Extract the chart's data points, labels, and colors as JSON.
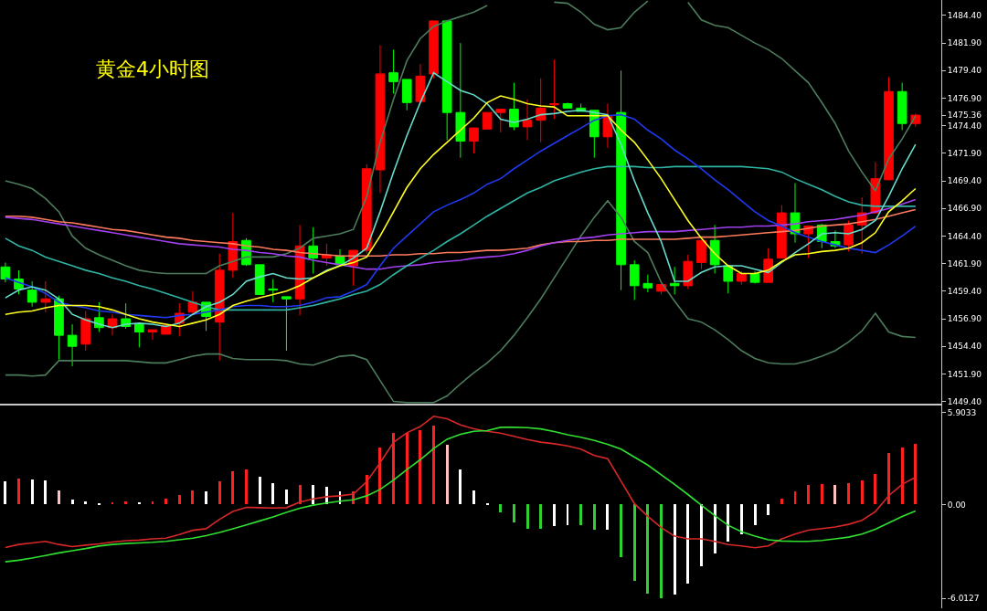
{
  "chart_data": [
    {
      "type": "candlestick",
      "title": "黄金4小时图",
      "categories": [
        null,
        null,
        null,
        null,
        null,
        null,
        null,
        null,
        null,
        null,
        null,
        null,
        null,
        null,
        null,
        null,
        null,
        null,
        null,
        null,
        null,
        null,
        null,
        null,
        null,
        null,
        null,
        null,
        null,
        null,
        null,
        null,
        null,
        null,
        null,
        null,
        null,
        null,
        null,
        null,
        null,
        null,
        null,
        null,
        null,
        null,
        null,
        null,
        null,
        null,
        null,
        null,
        null,
        null,
        null,
        null,
        null,
        null,
        null,
        null,
        null,
        null,
        null,
        null,
        null,
        null,
        null,
        null,
        null
      ],
      "ohlc": [
        [
          1461.6,
          1462.0,
          1460.2,
          1460.5
        ],
        [
          1460.5,
          1461.3,
          1459.1,
          1459.6
        ],
        [
          1459.5,
          1460.3,
          1458.0,
          1458.4
        ],
        [
          1458.4,
          1460.3,
          1457.5,
          1458.7
        ],
        [
          1458.7,
          1459.0,
          1453.2,
          1455.4
        ],
        [
          1455.4,
          1456.4,
          1452.6,
          1454.4
        ],
        [
          1454.6,
          1457.6,
          1454.0,
          1456.9
        ],
        [
          1457.0,
          1458.4,
          1455.7,
          1456.1
        ],
        [
          1456.1,
          1457.3,
          1455.4,
          1456.9
        ],
        [
          1456.9,
          1458.3,
          1456.0,
          1456.2
        ],
        [
          1456.4,
          1456.4,
          1454.3,
          1455.7
        ],
        [
          1455.7,
          1455.9,
          1455.0,
          1455.9
        ],
        [
          1455.5,
          1456.3,
          1455.5,
          1456.3
        ],
        [
          1456.5,
          1458.3,
          1455.3,
          1457.4
        ],
        [
          1457.5,
          1459.4,
          1457.3,
          1458.4
        ],
        [
          1458.4,
          1458.4,
          1455.8,
          1457.1
        ],
        [
          1456.6,
          1462.8,
          1453.1,
          1461.3
        ],
        [
          1461.3,
          1466.5,
          1460.6,
          1463.9
        ],
        [
          1464.0,
          1464.2,
          1461.7,
          1461.8
        ],
        [
          1461.8,
          1461.8,
          1459.1,
          1459.1
        ],
        [
          1459.6,
          1460.5,
          1458.4,
          1459.5
        ],
        [
          1458.9,
          1458.9,
          1454.0,
          1458.7
        ],
        [
          1458.7,
          1465.4,
          1457.2,
          1463.5
        ],
        [
          1463.5,
          1465.2,
          1461.0,
          1462.4
        ],
        [
          1462.4,
          1463.7,
          1461.7,
          1462.7
        ],
        [
          1462.6,
          1463.2,
          1461.7,
          1461.8
        ],
        [
          1461.7,
          1463.1,
          1459.9,
          1463.1
        ],
        [
          1463.1,
          1470.9,
          1462.8,
          1470.5
        ],
        [
          1470.4,
          1481.7,
          1468.3,
          1479.1
        ],
        [
          1479.2,
          1481.3,
          1477.3,
          1478.4
        ],
        [
          1478.6,
          1478.6,
          1475.8,
          1476.5
        ],
        [
          1476.6,
          1480.0,
          1476.5,
          1478.9
        ],
        [
          1479.1,
          1483.9,
          1478.7,
          1483.9
        ],
        [
          1483.9,
          1484.0,
          1473.1,
          1475.6
        ],
        [
          1475.6,
          1481.9,
          1471.5,
          1473.0
        ],
        [
          1473.0,
          1474.2,
          1471.9,
          1474.2
        ],
        [
          1474.1,
          1475.6,
          1474.1,
          1475.6
        ],
        [
          1475.6,
          1475.9,
          1473.8,
          1475.9
        ],
        [
          1475.9,
          1478.3,
          1474.0,
          1474.3
        ],
        [
          1474.3,
          1476.8,
          1473.1,
          1474.9
        ],
        [
          1474.9,
          1478.7,
          1472.9,
          1476.0
        ],
        [
          1476.3,
          1480.4,
          1475.0,
          1476.4
        ],
        [
          1476.4,
          1476.5,
          1476.0,
          1476.0
        ],
        [
          1476.0,
          1476.4,
          1475.7,
          1475.7
        ],
        [
          1475.8,
          1475.8,
          1471.5,
          1473.4
        ],
        [
          1473.4,
          1476.4,
          1472.4,
          1475.3
        ],
        [
          1475.6,
          1479.4,
          1459.5,
          1461.8
        ],
        [
          1461.8,
          1462.2,
          1458.6,
          1459.9
        ],
        [
          1460.1,
          1460.9,
          1459.3,
          1459.7
        ],
        [
          1459.4,
          1460.0,
          1459.1,
          1460.0
        ],
        [
          1460.1,
          1461.6,
          1459.1,
          1459.9
        ],
        [
          1459.9,
          1462.7,
          1459.6,
          1462.1
        ],
        [
          1462.0,
          1464.0,
          1461.4,
          1464.0
        ],
        [
          1464.0,
          1465.4,
          1461.0,
          1461.8
        ],
        [
          1461.7,
          1461.7,
          1459.2,
          1460.3
        ],
        [
          1460.3,
          1461.2,
          1460.0,
          1461.0
        ],
        [
          1461.0,
          1461.2,
          1460.1,
          1460.2
        ],
        [
          1460.2,
          1463.3,
          1460.2,
          1462.3
        ],
        [
          1462.4,
          1467.2,
          1462.4,
          1466.5
        ],
        [
          1466.5,
          1469.2,
          1463.8,
          1464.6
        ],
        [
          1464.6,
          1465.3,
          1462.4,
          1465.3
        ],
        [
          1465.4,
          1465.5,
          1463.3,
          1463.9
        ],
        [
          1463.9,
          1464.9,
          1463.3,
          1463.5
        ],
        [
          1463.6,
          1465.8,
          1463.0,
          1465.4
        ],
        [
          1465.4,
          1467.9,
          1462.8,
          1466.5
        ],
        [
          1466.5,
          1471.1,
          1466.4,
          1469.6
        ],
        [
          1469.5,
          1478.8,
          1469.5,
          1477.5
        ],
        [
          1477.5,
          1478.3,
          1474.0,
          1474.6
        ],
        [
          1474.6,
          1475.5,
          1474.3,
          1475.36
        ]
      ],
      "colors": [
        "#00ff00",
        "#00ff00",
        "#00ff00",
        "#ff0000",
        "#00ff00",
        "#00ff00",
        "#ff0000",
        "#00ff00",
        "#ff0000",
        "#00ff00",
        "#00ff00",
        "#ff0000",
        "#ff0000",
        "#ff0000",
        "#ff0000",
        "#00ff00",
        "#ff0000",
        "#ff0000",
        "#00ff00",
        "#00ff00",
        "#00ff00",
        "#00ff00",
        "#ff0000",
        "#00ff00",
        "#ff0000",
        "#00ff00",
        "#ff0000",
        "#ff0000",
        "#ff0000",
        "#00ff00",
        "#00ff00",
        "#ff0000",
        "#ff0000",
        "#00ff00",
        "#00ff00",
        "#ff0000",
        "#ff0000",
        "#ff0000",
        "#00ff00",
        "#ff0000",
        "#ff0000",
        "#ff0000",
        "#00ff00",
        "#00ff00",
        "#00ff00",
        "#ff0000",
        "#00ff00",
        "#00ff00",
        "#00ff00",
        "#ff0000",
        "#00ff00",
        "#ff0000",
        "#ff0000",
        "#00ff00",
        "#00ff00",
        "#ff0000",
        "#00ff00",
        "#ff0000",
        "#ff0000",
        "#00ff00",
        "#ff0000",
        "#00ff00",
        "#00ff00",
        "#ff0000",
        "#ff0000",
        "#ff0000",
        "#ff0000",
        "#00ff00",
        "#ff0000"
      ],
      "series": [
        {
          "type": "line",
          "color": "#4c7c5c",
          "values": [
            1469.4,
            1469.1,
            1468.7,
            1467.8,
            1466.6,
            1464.4,
            1463.3,
            1462.7,
            1462.2,
            1461.7,
            1461.3,
            1461.1,
            1461.0,
            1461.0,
            1461.0,
            1461.0,
            1461.7,
            1462.1,
            1462.5,
            1462.5,
            1462.5,
            1462.8,
            1463.3,
            1464.2,
            1464.4,
            1464.6,
            1465.0,
            1468.0,
            1472.9,
            1476.8,
            1480.3,
            1482.3,
            1483.4,
            1483.9,
            1484.3,
            1484.7,
            1485.3,
            null,
            null,
            null,
            null,
            1485.6,
            1485.5,
            1484.7,
            1483.6,
            1483.1,
            1483.3,
            1484.7,
            1485.7,
            null,
            null,
            1485.6,
            1484.0,
            1483.5,
            1483.3,
            1482.6,
            1481.9,
            1481.3,
            1480.5,
            1479.4,
            1478.3,
            1476.5,
            1474.6,
            1472.1,
            1470.2,
            1468.5,
            1471.4,
            1473.2,
            1475.3
          ]
        },
        {
          "type": "line",
          "color": "#4c7c5c",
          "values": [
            1451.8,
            1451.8,
            1451.7,
            1451.8,
            1453.1,
            1453.1,
            1453.1,
            1453.1,
            1453.1,
            1453.1,
            1453.0,
            1452.9,
            1452.9,
            1453.2,
            1453.5,
            1453.7,
            1453.7,
            1453.3,
            1453.2,
            1453.2,
            1453.2,
            1453.1,
            1452.8,
            1452.7,
            1453.1,
            1453.5,
            1453.6,
            1453.2,
            1451.3,
            1449.4,
            1449.3,
            1449.3,
            1449.3,
            1449.9,
            1451.0,
            1452.0,
            1452.9,
            1454.0,
            1455.4,
            1457.0,
            1458.7,
            1460.6,
            1462.5,
            1464.4,
            1466.1,
            1467.6,
            1466.1,
            1463.9,
            1462.9,
            1460.2,
            1458.5,
            1456.9,
            1456.6,
            1455.9,
            1455.0,
            1454.0,
            1453.3,
            1452.9,
            1452.8,
            1452.8,
            1453.1,
            1453.5,
            1454.0,
            1454.8,
            1455.8,
            1457.4,
            1455.7,
            1455.3,
            1455.2
          ]
        },
        {
          "type": "line",
          "color": "#ff7a5c",
          "values": [
            1466.2,
            1466.2,
            1466.1,
            1465.9,
            1465.7,
            1465.6,
            1465.4,
            1465.2,
            1465.0,
            1464.9,
            1464.7,
            1464.5,
            1464.3,
            1464.2,
            1464.0,
            1463.9,
            1463.8,
            1463.7,
            1463.5,
            1463.4,
            1463.2,
            1463.1,
            1462.9,
            1462.8,
            1462.7,
            1462.6,
            1462.6,
            1462.6,
            1462.6,
            1462.7,
            1462.7,
            1462.8,
            1462.8,
            1462.9,
            1462.9,
            1463.0,
            1463.1,
            1463.1,
            1463.2,
            1463.3,
            1463.6,
            1463.8,
            1463.9,
            1463.9,
            1464.0,
            1464.0,
            1464.1,
            1464.1,
            1464.1,
            1464.1,
            1464.1,
            1464.2,
            1464.3,
            1464.3,
            1464.4,
            1464.5,
            1464.6,
            1464.7,
            1464.8,
            1464.9,
            1465.1,
            1465.3,
            1465.4,
            1465.5,
            1465.7,
            1465.9,
            1466.2,
            1466.5,
            1466.8
          ]
        },
        {
          "type": "line",
          "color": "#a040f0",
          "values": [
            1466.1,
            1466.0,
            1465.9,
            1465.7,
            1465.5,
            1465.3,
            1465.1,
            1464.9,
            1464.7,
            1464.5,
            1464.3,
            1464.1,
            1463.9,
            1463.7,
            1463.6,
            1463.5,
            1463.4,
            1463.2,
            1463.1,
            1462.9,
            1462.8,
            1462.6,
            1462.5,
            1462.2,
            1462.0,
            1461.8,
            1461.6,
            1461.4,
            1461.4,
            1461.6,
            1461.7,
            1461.8,
            1462.0,
            1462.1,
            1462.2,
            1462.4,
            1462.5,
            1462.6,
            1462.8,
            1463.1,
            1463.5,
            1463.8,
            1464.0,
            1464.2,
            1464.3,
            1464.5,
            1464.6,
            1464.7,
            1464.8,
            1464.8,
            1464.8,
            1464.9,
            1465.0,
            1465.1,
            1465.2,
            1465.2,
            1465.3,
            1465.3,
            1465.4,
            1465.5,
            1465.7,
            1465.8,
            1465.9,
            1466.1,
            1466.3,
            1466.6,
            1466.9,
            1467.3,
            1467.7
          ]
        },
        {
          "type": "line",
          "color": "#2fb4a4",
          "values": [
            1464.2,
            1463.5,
            1463.1,
            1462.5,
            1462.1,
            1461.7,
            1461.3,
            1461.0,
            1460.6,
            1460.3,
            1459.9,
            1459.6,
            1459.2,
            1458.8,
            1458.4,
            1458.0,
            1457.7,
            1457.7,
            1457.7,
            1457.7,
            1457.7,
            1457.7,
            1457.9,
            1458.1,
            1458.4,
            1458.7,
            1459.1,
            1459.4,
            1460.0,
            1460.9,
            1461.7,
            1462.4,
            1463.1,
            1463.9,
            1464.6,
            1465.4,
            1466.2,
            1466.9,
            1467.6,
            1468.3,
            1468.8,
            1469.4,
            1469.8,
            1470.2,
            1470.5,
            1470.7,
            1470.7,
            1470.7,
            1470.6,
            1470.6,
            1470.7,
            1470.7,
            1470.7,
            1470.7,
            1470.7,
            1470.7,
            1470.6,
            1470.5,
            1470.2,
            1469.6,
            1469.1,
            1468.6,
            1468.0,
            1467.5,
            1467.2,
            1467.1,
            1467.1,
            1467.1,
            1467.1
          ]
        },
        {
          "type": "line",
          "color": "#2038f0",
          "values": [
            1460.6,
            1460.2,
            1459.8,
            1459.2,
            1458.4,
            1458.1,
            1457.9,
            1457.6,
            1457.5,
            1457.3,
            1457.2,
            1457.1,
            1457.0,
            1457.2,
            1457.3,
            1457.5,
            1457.7,
            1458.0,
            1458.1,
            1458.1,
            1458.0,
            1458.0,
            1458.1,
            1458.4,
            1458.8,
            1458.9,
            1459.4,
            1460.0,
            1461.7,
            1463.3,
            1464.4,
            1465.5,
            1466.6,
            1467.2,
            1467.7,
            1468.3,
            1469.1,
            1469.6,
            1470.5,
            1471.3,
            1472.1,
            1472.8,
            1473.5,
            1474.2,
            1474.9,
            1475.3,
            1475.4,
            1475.0,
            1474.0,
            1473.2,
            1472.2,
            1471.4,
            1470.5,
            1469.5,
            1468.6,
            1467.6,
            1466.6,
            1465.8,
            1465.3,
            1464.7,
            1464.3,
            1463.9,
            1463.6,
            1463.3,
            1463.1,
            1462.9,
            1463.6,
            1464.4,
            1465.3
          ]
        },
        {
          "type": "line",
          "color": "#66dccc",
          "values": [
            1458.8,
            1459.5,
            1459.8,
            1459.5,
            1458.7,
            1457.3,
            1456.8,
            1456.4,
            1456.1,
            1456.4,
            1456.5,
            1456.4,
            1456.2,
            1456.5,
            1457.3,
            1458.0,
            1458.4,
            1459.1,
            1460.3,
            1460.7,
            1461.0,
            1460.6,
            1460.5,
            1460.6,
            1461.3,
            1461.7,
            1462.4,
            1463.3,
            1466.6,
            1470.2,
            1473.5,
            1476.5,
            1479.2,
            1478.4,
            1477.6,
            1477.2,
            1476.4,
            1475.0,
            1474.7,
            1475.0,
            1475.4,
            1475.5,
            1475.7,
            1475.8,
            1475.6,
            1475.4,
            1472.7,
            1469.4,
            1466.5,
            1463.9,
            1460.3,
            1460.3,
            1461.1,
            1461.6,
            1461.7,
            1461.7,
            1461.4,
            1461.1,
            1462.0,
            1462.9,
            1463.7,
            1464.6,
            1464.7,
            1464.6,
            1465.0,
            1465.8,
            1468.0,
            1470.5,
            1472.7
          ]
        },
        {
          "type": "line",
          "color": "#ffff20",
          "values": [
            1457.3,
            1457.5,
            1457.6,
            1457.9,
            1458.1,
            1458.1,
            1458.1,
            1458.0,
            1457.7,
            1457.3,
            1456.9,
            1456.6,
            1456.4,
            1456.2,
            1456.5,
            1456.8,
            1457.3,
            1458.1,
            1458.5,
            1458.8,
            1459.1,
            1459.4,
            1459.9,
            1460.6,
            1461.2,
            1461.7,
            1462.0,
            1462.5,
            1464.4,
            1466.6,
            1468.8,
            1470.5,
            1471.8,
            1472.9,
            1474.0,
            1475.1,
            1476.5,
            1477.1,
            1476.8,
            1476.4,
            1476.2,
            1476.1,
            1475.3,
            1475.3,
            1475.3,
            1475.3,
            1474.0,
            1472.9,
            1471.3,
            1469.6,
            1467.7,
            1465.8,
            1464.2,
            1462.8,
            1461.7,
            1461.0,
            1461.0,
            1461.3,
            1462.1,
            1462.7,
            1462.8,
            1463.0,
            1463.1,
            1463.3,
            1463.8,
            1464.7,
            1466.6,
            1467.6,
            1468.7
          ]
        }
      ],
      "ylim": [
        1449.2,
        1485.8
      ],
      "yticks": [
        {
          "value": 1449.4,
          "label": "1449.40"
        },
        {
          "value": 1451.9,
          "label": "1451.90"
        },
        {
          "value": 1454.4,
          "label": "1454.40"
        },
        {
          "value": 1456.9,
          "label": "1456.90"
        },
        {
          "value": 1459.4,
          "label": "1459.40"
        },
        {
          "value": 1461.9,
          "label": "1461.90"
        },
        {
          "value": 1464.4,
          "label": "1464.40"
        },
        {
          "value": 1466.9,
          "label": "1466.90"
        },
        {
          "value": 1469.4,
          "label": "1469.40"
        },
        {
          "value": 1471.9,
          "label": "1471.90"
        },
        {
          "value": 1474.4,
          "label": "1474.40"
        },
        {
          "value": 1475.36,
          "label": "1475.36"
        },
        {
          "value": 1476.9,
          "label": "1476.90"
        },
        {
          "value": 1479.4,
          "label": "1479.40"
        },
        {
          "value": 1481.9,
          "label": "1481.90"
        },
        {
          "value": 1484.4,
          "label": "1484.40"
        }
      ],
      "tick_labels": "y"
    },
    {
      "type": "bar",
      "categories": [
        null,
        null,
        null,
        null,
        null,
        null,
        null,
        null,
        null,
        null,
        null,
        null,
        null,
        null,
        null,
        null,
        null,
        null,
        null,
        null,
        null,
        null,
        null,
        null,
        null,
        null,
        null,
        null,
        null,
        null,
        null,
        null,
        null,
        null,
        null,
        null,
        null,
        null,
        null,
        null,
        null,
        null,
        null,
        null,
        null,
        null,
        null,
        null,
        null,
        null,
        null,
        null,
        null,
        null,
        null,
        null,
        null,
        null,
        null,
        null,
        null,
        null,
        null,
        null,
        null,
        null,
        null,
        null,
        null
      ],
      "series": [
        {
          "type": "bar",
          "values": [
            1.47,
            1.67,
            1.61,
            1.57,
            0.93,
            0.34,
            0.22,
            0.06,
            0.14,
            0.2,
            0.16,
            0.22,
            0.4,
            0.6,
            0.93,
            0.87,
            1.47,
            2.14,
            2.26,
            1.81,
            1.39,
            0.97,
            1.23,
            1.23,
            1.11,
            0.87,
            0.87,
            1.88,
            3.65,
            4.58,
            4.62,
            4.74,
            5.06,
            3.85,
            2.24,
            0.91,
            0.05,
            -0.49,
            -1.13,
            -1.54,
            -1.54,
            -1.38,
            -1.33,
            -1.31,
            -1.64,
            -1.64,
            -3.39,
            -4.87,
            -5.69,
            -6.0,
            -5.79,
            -5.07,
            -3.94,
            -3.12,
            -2.4,
            -1.89,
            -1.33,
            -0.65,
            0.37,
            0.82,
            1.25,
            1.29,
            1.25,
            1.4,
            1.56,
            1.97,
            3.29,
            3.66,
            3.87
          ],
          "colors": [
            "#ffffff",
            "#ff2020",
            "#ffffff",
            "#ffffff",
            "#ffc0c0",
            "#ffffff",
            "#ffffff",
            "#ffffff",
            "#ff2020",
            "#ff2020",
            "#ffffff",
            "#ff2020",
            "#ff2020",
            "#ff2020",
            "#ff2020",
            "#ffffff",
            "#ff2020",
            "#ff2020",
            "#ff2020",
            "#ffffff",
            "#ffffff",
            "#ffffff",
            "#ff2020",
            "#ffffff",
            "#ffffff",
            "#ffffff",
            "#ff2020",
            "#ff2020",
            "#ff2020",
            "#ff2020",
            "#ff2020",
            "#ff2020",
            "#ff2020",
            "#ffc0c0",
            "#ffffff",
            "#ffffff",
            "#ffffff",
            "#30d030",
            "#30d030",
            "#30d030",
            "#30d030",
            "#ffffff",
            "#ffffff",
            "#30d030",
            "#30d030",
            "#ffffff",
            "#30d030",
            "#30d030",
            "#30d030",
            "#30d030",
            "#ffffff",
            "#ffffff",
            "#ffffff",
            "#ffffff",
            "#ffffff",
            "#ffffff",
            "#ffffff",
            "#ffffff",
            "#ff2020",
            "#ff2020",
            "#ff2020",
            "#ff2020",
            "#ffc0c0",
            "#ff2020",
            "#ff2020",
            "#ff2020",
            "#ff2020",
            "#ff2020",
            "#ff2020"
          ]
        },
        {
          "type": "line",
          "color": "#d82828",
          "values": [
            -2.76,
            -2.56,
            -2.46,
            -2.36,
            -2.56,
            -2.7,
            -2.6,
            -2.52,
            -2.4,
            -2.32,
            -2.28,
            -2.2,
            -2.16,
            -1.92,
            -1.65,
            -1.55,
            -0.95,
            -0.44,
            -0.18,
            -0.2,
            -0.22,
            -0.2,
            0.16,
            0.36,
            0.5,
            0.56,
            0.67,
            1.47,
            2.68,
            3.99,
            4.6,
            5.0,
            5.66,
            5.5,
            5.1,
            4.86,
            4.7,
            4.58,
            4.37,
            4.17,
            4.0,
            3.9,
            3.76,
            3.55,
            3.14,
            2.94,
            1.5,
            0.06,
            -0.76,
            -1.48,
            -2.03,
            -2.2,
            -2.2,
            -2.36,
            -2.57,
            -2.65,
            -2.77,
            -2.65,
            -2.2,
            -1.89,
            -1.64,
            -1.54,
            -1.44,
            -1.27,
            -1.01,
            -0.45,
            0.57,
            1.29,
            1.75
          ]
        },
        {
          "type": "line",
          "color": "#30e030",
          "values": [
            -3.67,
            -3.57,
            -3.43,
            -3.27,
            -3.1,
            -2.96,
            -2.82,
            -2.66,
            -2.56,
            -2.5,
            -2.46,
            -2.42,
            -2.36,
            -2.26,
            -2.16,
            -2.0,
            -1.79,
            -1.55,
            -1.31,
            -1.05,
            -0.79,
            -0.5,
            -0.24,
            -0.04,
            0.1,
            0.22,
            0.3,
            0.56,
            0.97,
            1.57,
            2.24,
            2.88,
            3.59,
            4.19,
            4.5,
            4.7,
            4.74,
            4.95,
            4.95,
            4.93,
            4.85,
            4.68,
            4.48,
            4.31,
            4.11,
            3.86,
            3.55,
            3.04,
            2.53,
            1.91,
            1.29,
            0.64,
            -0.04,
            -0.72,
            -1.33,
            -1.75,
            -2.03,
            -2.26,
            -2.34,
            -2.36,
            -2.36,
            -2.3,
            -2.2,
            -2.09,
            -1.89,
            -1.58,
            -1.17,
            -0.76,
            -0.41
          ]
        }
      ],
      "ylim": [
        -6.65,
        6.35
      ],
      "yticks": [
        {
          "value": 5.9033,
          "label": "5.9033"
        },
        {
          "value": 0,
          "label": "0.00"
        },
        {
          "value": -6.0127,
          "label": "-6.0127"
        }
      ],
      "tick_labels": "y"
    }
  ]
}
